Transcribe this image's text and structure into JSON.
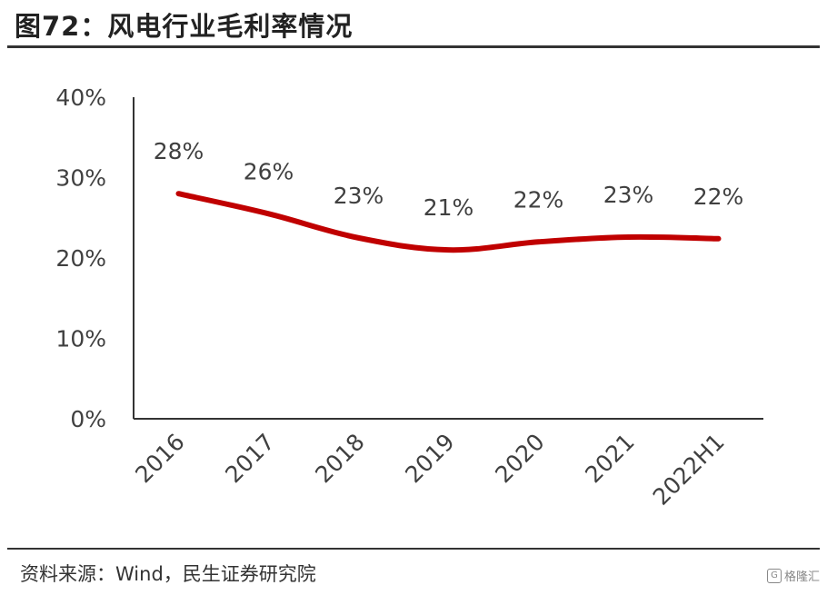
{
  "header": {
    "title": "图72：风电行业毛利率情况"
  },
  "chart_data": {
    "type": "line",
    "title": "图72：风电行业毛利率情况",
    "categories": [
      "2016",
      "2017",
      "2018",
      "2019",
      "2020",
      "2021",
      "2022H1"
    ],
    "series": [
      {
        "values": [
          28,
          25.5,
          22.5,
          21,
          22,
          22.6,
          22.4
        ],
        "data_labels": [
          "28%",
          "26%",
          "23%",
          "21%",
          "22%",
          "23%",
          "22%"
        ],
        "color": "#C00000"
      }
    ],
    "y_ticks": [
      "0%",
      "10%",
      "20%",
      "30%",
      "40%"
    ],
    "ylim": [
      0,
      40
    ],
    "xlabel": "",
    "ylabel": "",
    "grid": false,
    "legend": "none"
  },
  "footer": {
    "source": "资料来源：Wind，民生证券研究院",
    "watermark": "格隆汇"
  },
  "colors": {
    "line": "#C00000",
    "axis": "#333333",
    "text": "#404040"
  }
}
